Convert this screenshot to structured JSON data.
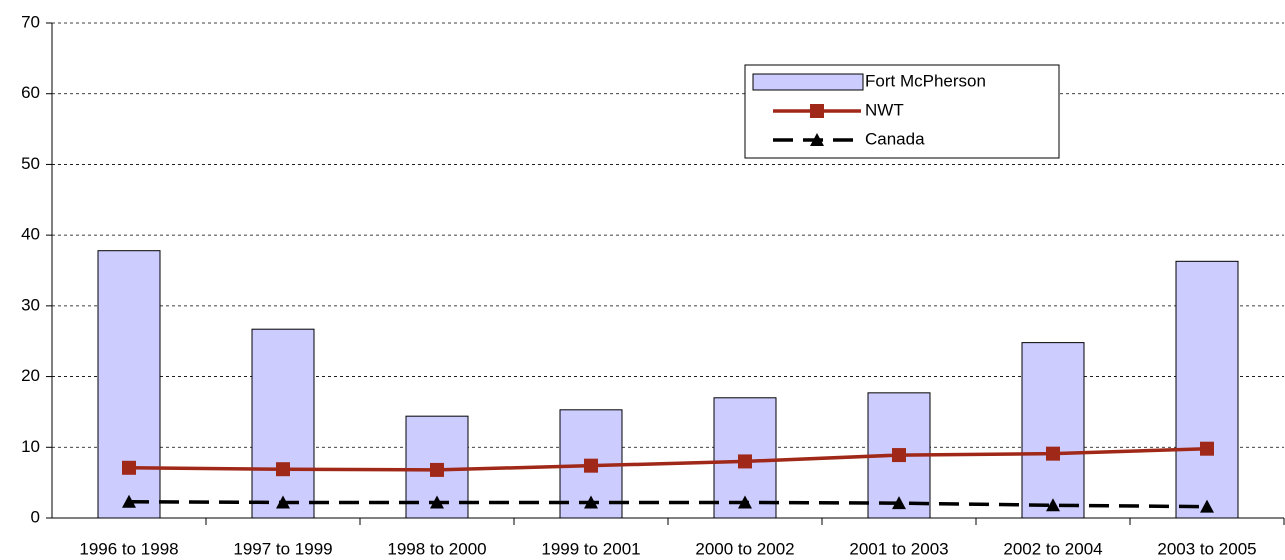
{
  "chart_data": {
    "type": "combo",
    "categories": [
      "1996 to 1998",
      "1997 to 1999",
      "1998 to 2000",
      "1999 to 2001",
      "2000 to 2002",
      "2001 to 2003",
      "2002 to 2004",
      "2003 to 2005"
    ],
    "series": [
      {
        "name": "Fort McPherson",
        "type": "bar",
        "color": "#ccccff",
        "values": [
          37.8,
          26.7,
          14.4,
          15.3,
          17.0,
          17.7,
          24.8,
          36.3
        ]
      },
      {
        "name": "NWT",
        "type": "line",
        "marker": "square",
        "color": "#a02818",
        "values": [
          7.1,
          6.9,
          6.8,
          7.4,
          8.0,
          8.9,
          9.1,
          9.8
        ]
      },
      {
        "name": "Canada",
        "type": "line",
        "marker": "triangle",
        "dashed": true,
        "color": "#000000",
        "values": [
          2.3,
          2.2,
          2.2,
          2.2,
          2.2,
          2.1,
          1.8,
          1.6
        ]
      }
    ],
    "ylim": [
      0,
      70
    ],
    "yticks": [
      0,
      10,
      20,
      30,
      40,
      50,
      60,
      70
    ],
    "grid": true
  }
}
